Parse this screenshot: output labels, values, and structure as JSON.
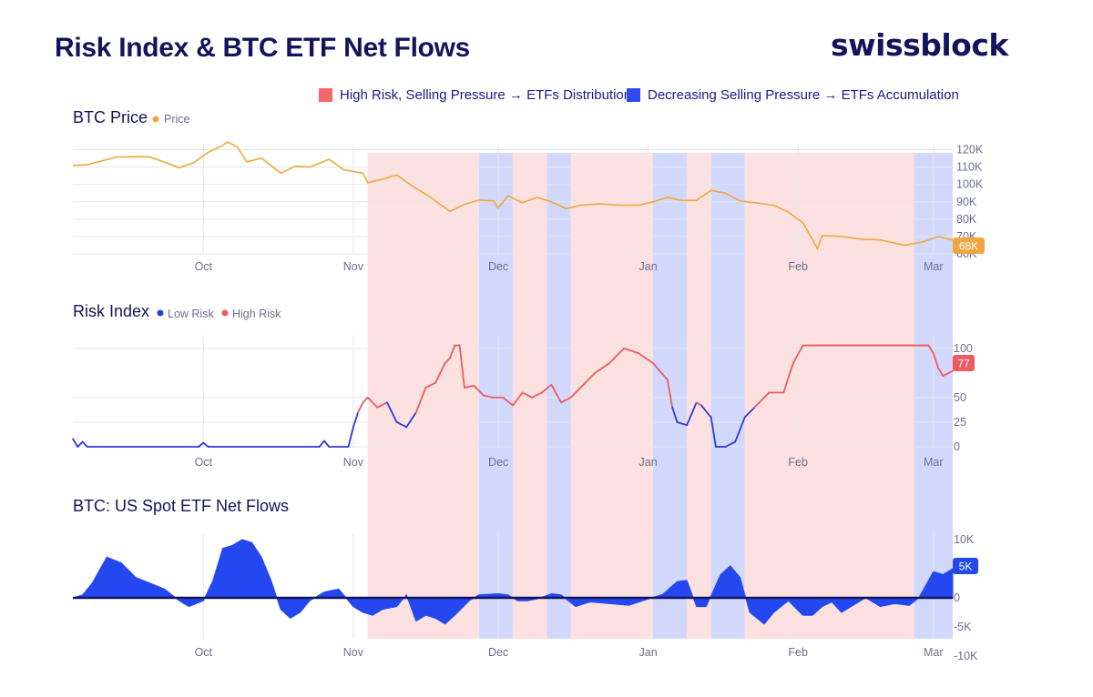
{
  "header": {
    "title": "Risk Index & BTC ETF Net Flows",
    "brand": "swissblock"
  },
  "legend": {
    "high_risk": "High Risk, Selling Pressure → ETFs Distribution",
    "decreasing": "Decreasing Selling Pressure → ETFs Accumulation"
  },
  "colors": {
    "high_band": "#fde1e1",
    "low_band": "#d2d8fb",
    "price": "#f0a640",
    "risk_high": "#ee5a5f",
    "risk_low": "#2f3ad8",
    "flows": "#2448f0",
    "navy": "#13145b",
    "tick": "#6b6f90"
  },
  "chart_data": [
    {
      "type": "line",
      "title": "BTC Price",
      "series": [
        {
          "name": "Price",
          "points": [
            [
              "2025-09-04",
              111000
            ],
            [
              "2025-09-07",
              111300
            ],
            [
              "2025-09-10",
              113500
            ],
            [
              "2025-09-13",
              115800
            ],
            [
              "2025-09-17",
              116000
            ],
            [
              "2025-09-20",
              115800
            ],
            [
              "2025-09-23",
              112800
            ],
            [
              "2025-09-26",
              109600
            ],
            [
              "2025-09-29",
              112500
            ],
            [
              "2025-10-02",
              118500
            ],
            [
              "2025-10-05",
              122500
            ],
            [
              "2025-10-06",
              124500
            ],
            [
              "2025-10-08",
              121500
            ],
            [
              "2025-10-10",
              113000
            ],
            [
              "2025-10-13",
              115200
            ],
            [
              "2025-10-17",
              106500
            ],
            [
              "2025-10-20",
              110500
            ],
            [
              "2025-10-23",
              110000
            ],
            [
              "2025-10-27",
              114500
            ],
            [
              "2025-10-30",
              108500
            ],
            [
              "2025-11-03",
              106500
            ],
            [
              "2025-11-04",
              101000
            ],
            [
              "2025-11-07",
              103000
            ],
            [
              "2025-11-10",
              105500
            ],
            [
              "2025-11-13",
              99500
            ],
            [
              "2025-11-17",
              92500
            ],
            [
              "2025-11-21",
              84500
            ],
            [
              "2025-11-24",
              88500
            ],
            [
              "2025-11-27",
              91000
            ],
            [
              "2025-11-30",
              90500
            ],
            [
              "2025-12-01",
              86500
            ],
            [
              "2025-12-03",
              93500
            ],
            [
              "2025-12-06",
              89500
            ],
            [
              "2025-12-09",
              92500
            ],
            [
              "2025-12-12",
              90000
            ],
            [
              "2025-12-15",
              86000
            ],
            [
              "2025-12-18",
              88000
            ],
            [
              "2025-12-22",
              88800
            ],
            [
              "2025-12-26",
              88000
            ],
            [
              "2025-12-30",
              88000
            ],
            [
              "2026-01-02",
              90000
            ],
            [
              "2026-01-05",
              92500
            ],
            [
              "2026-01-08",
              90800
            ],
            [
              "2026-01-11",
              90800
            ],
            [
              "2026-01-14",
              96500
            ],
            [
              "2026-01-17",
              95000
            ],
            [
              "2026-01-20",
              90500
            ],
            [
              "2026-01-23",
              89500
            ],
            [
              "2026-01-27",
              88000
            ],
            [
              "2026-01-30",
              84000
            ],
            [
              "2026-02-02",
              78000
            ],
            [
              "2026-02-05",
              63000
            ],
            [
              "2026-02-06",
              70500
            ],
            [
              "2026-02-10",
              70000
            ],
            [
              "2026-02-14",
              68500
            ],
            [
              "2026-02-18",
              68000
            ],
            [
              "2026-02-23",
              65000
            ],
            [
              "2026-02-27",
              67000
            ],
            [
              "2026-03-02",
              70000
            ],
            [
              "2026-03-05",
              68000
            ]
          ]
        }
      ],
      "y_ticks": [
        "60K",
        "70K",
        "80K",
        "90K",
        "100K",
        "110K",
        "120K"
      ],
      "ylim": [
        60000,
        125000
      ],
      "current_label": "68K",
      "grid": true
    },
    {
      "type": "line",
      "title": "Risk Index",
      "series": [
        {
          "name": "Low Risk"
        },
        {
          "name": "High Risk"
        }
      ],
      "points": [
        [
          "2025-09-04",
          8
        ],
        [
          "2025-09-05",
          0
        ],
        [
          "2025-09-06",
          5
        ],
        [
          "2025-09-07",
          0
        ],
        [
          "2025-09-08",
          0
        ],
        [
          "2025-09-30",
          0
        ],
        [
          "2025-10-01",
          4
        ],
        [
          "2025-10-02",
          0
        ],
        [
          "2025-10-25",
          0
        ],
        [
          "2025-10-26",
          6
        ],
        [
          "2025-10-27",
          0
        ],
        [
          "2025-10-31",
          0
        ],
        [
          "2025-11-01",
          20
        ],
        [
          "2025-11-02",
          35
        ],
        [
          "2025-11-03",
          45
        ],
        [
          "2025-11-04",
          50
        ],
        [
          "2025-11-06",
          40
        ],
        [
          "2025-11-08",
          45
        ],
        [
          "2025-11-10",
          25
        ],
        [
          "2025-11-12",
          20
        ],
        [
          "2025-11-14",
          35
        ],
        [
          "2025-11-16",
          60
        ],
        [
          "2025-11-18",
          65
        ],
        [
          "2025-11-20",
          85
        ],
        [
          "2025-11-21",
          90
        ],
        [
          "2025-11-22",
          103
        ],
        [
          "2025-11-23",
          103
        ],
        [
          "2025-11-24",
          60
        ],
        [
          "2025-11-26",
          62
        ],
        [
          "2025-11-28",
          52
        ],
        [
          "2025-11-30",
          50
        ],
        [
          "2025-12-02",
          50
        ],
        [
          "2025-12-04",
          42
        ],
        [
          "2025-12-06",
          55
        ],
        [
          "2025-12-08",
          50
        ],
        [
          "2025-12-10",
          55
        ],
        [
          "2025-12-12",
          63
        ],
        [
          "2025-12-14",
          45
        ],
        [
          "2025-12-16",
          50
        ],
        [
          "2025-12-18",
          60
        ],
        [
          "2025-12-21",
          75
        ],
        [
          "2025-12-24",
          85
        ],
        [
          "2025-12-27",
          100
        ],
        [
          "2025-12-30",
          95
        ],
        [
          "2026-01-02",
          85
        ],
        [
          "2026-01-05",
          68
        ],
        [
          "2026-01-06",
          40
        ],
        [
          "2026-01-07",
          25
        ],
        [
          "2026-01-09",
          22
        ],
        [
          "2026-01-11",
          45
        ],
        [
          "2026-01-12",
          42
        ],
        [
          "2026-01-14",
          30
        ],
        [
          "2026-01-15",
          0
        ],
        [
          "2026-01-17",
          0
        ],
        [
          "2026-01-19",
          5
        ],
        [
          "2026-01-21",
          30
        ],
        [
          "2026-01-23",
          40
        ],
        [
          "2026-01-26",
          55
        ],
        [
          "2026-01-29",
          55
        ],
        [
          "2026-01-31",
          85
        ],
        [
          "2026-02-02",
          103
        ],
        [
          "2026-02-04",
          103
        ],
        [
          "2026-02-27",
          103
        ],
        [
          "2026-02-28",
          103
        ],
        [
          "2026-03-01",
          95
        ],
        [
          "2026-03-02",
          80
        ],
        [
          "2026-03-03",
          72
        ],
        [
          "2026-03-05",
          77
        ]
      ],
      "threshold": 40,
      "y_ticks": [
        "0",
        "25",
        "50",
        "100"
      ],
      "ylim": [
        0,
        110
      ],
      "current_label": "77"
    },
    {
      "type": "area",
      "title": "BTC: US Spot ETF Net Flows",
      "points": [
        [
          "2025-09-04",
          0
        ],
        [
          "2025-09-06",
          500
        ],
        [
          "2025-09-08",
          2500
        ],
        [
          "2025-09-11",
          7000
        ],
        [
          "2025-09-14",
          6000
        ],
        [
          "2025-09-17",
          3500
        ],
        [
          "2025-09-20",
          2500
        ],
        [
          "2025-09-23",
          1500
        ],
        [
          "2025-09-26",
          -500
        ],
        [
          "2025-09-28",
          -1500
        ],
        [
          "2025-10-01",
          -500
        ],
        [
          "2025-10-03",
          3000
        ],
        [
          "2025-10-05",
          8500
        ],
        [
          "2025-10-07",
          9000
        ],
        [
          "2025-10-09",
          10000
        ],
        [
          "2025-10-11",
          9500
        ],
        [
          "2025-10-13",
          7000
        ],
        [
          "2025-10-15",
          3000
        ],
        [
          "2025-10-17",
          -2000
        ],
        [
          "2025-10-19",
          -3500
        ],
        [
          "2025-10-21",
          -2500
        ],
        [
          "2025-10-23",
          -500
        ],
        [
          "2025-10-26",
          1000
        ],
        [
          "2025-10-29",
          1500
        ],
        [
          "2025-11-01",
          -1500
        ],
        [
          "2025-11-03",
          -2500
        ],
        [
          "2025-11-05",
          -3000
        ],
        [
          "2025-11-07",
          -2000
        ],
        [
          "2025-11-10",
          -1500
        ],
        [
          "2025-11-12",
          500
        ],
        [
          "2025-11-14",
          -4000
        ],
        [
          "2025-11-16",
          -3000
        ],
        [
          "2025-11-18",
          -3500
        ],
        [
          "2025-11-20",
          -4500
        ],
        [
          "2025-11-22",
          -3000
        ],
        [
          "2025-11-25",
          -500
        ],
        [
          "2025-11-27",
          500
        ],
        [
          "2025-12-01",
          700
        ],
        [
          "2025-12-03",
          500
        ],
        [
          "2025-12-05",
          -500
        ],
        [
          "2025-12-07",
          -500
        ],
        [
          "2025-12-09",
          -200
        ],
        [
          "2025-12-12",
          700
        ],
        [
          "2025-12-14",
          500
        ],
        [
          "2025-12-17",
          -1500
        ],
        [
          "2025-12-20",
          -700
        ],
        [
          "2025-12-24",
          -1000
        ],
        [
          "2025-12-28",
          -1300
        ],
        [
          "2026-01-01",
          -200
        ],
        [
          "2026-01-04",
          600
        ],
        [
          "2026-01-07",
          2800
        ],
        [
          "2026-01-09",
          3000
        ],
        [
          "2026-01-11",
          -1500
        ],
        [
          "2026-01-13",
          -1500
        ],
        [
          "2026-01-16",
          4000
        ],
        [
          "2026-01-18",
          5500
        ],
        [
          "2026-01-20",
          3500
        ],
        [
          "2026-01-22",
          -2500
        ],
        [
          "2026-01-25",
          -4500
        ],
        [
          "2026-01-27",
          -2500
        ],
        [
          "2026-01-30",
          -500
        ],
        [
          "2026-02-02",
          -3000
        ],
        [
          "2026-02-04",
          -3000
        ],
        [
          "2026-02-06",
          -1500
        ],
        [
          "2026-02-08",
          -700
        ],
        [
          "2026-02-10",
          -2500
        ],
        [
          "2026-02-12",
          -1500
        ],
        [
          "2026-02-15",
          0
        ],
        [
          "2026-02-18",
          -1500
        ],
        [
          "2026-02-21",
          -1000
        ],
        [
          "2026-02-24",
          -1300
        ],
        [
          "2026-02-26",
          0
        ],
        [
          "2026-03-01",
          4500
        ],
        [
          "2026-03-03",
          4000
        ],
        [
          "2026-03-05",
          5000
        ]
      ],
      "y_ticks": [
        "10K",
        "5K",
        "0",
        "-5K",
        "-10K"
      ],
      "ylim": [
        -10000,
        10000
      ],
      "current_label": "5K"
    }
  ],
  "x_axis": {
    "ticks": [
      [
        "Oct",
        "2025-10-01"
      ],
      [
        "Nov",
        "2025-11-01"
      ],
      [
        "Dec",
        "2025-12-01"
      ],
      [
        "Jan",
        "2026-01-01"
      ],
      [
        "Feb",
        "2026-02-01"
      ],
      [
        "Mar",
        "2026-03-01"
      ]
    ]
  },
  "bands": [
    [
      "high",
      "2025-11-04",
      "2025-11-27"
    ],
    [
      "low",
      "2025-11-27",
      "2025-12-04"
    ],
    [
      "high",
      "2025-12-04",
      "2025-12-11"
    ],
    [
      "low",
      "2025-12-11",
      "2025-12-16"
    ],
    [
      "high",
      "2025-12-16",
      "2026-01-02"
    ],
    [
      "low",
      "2026-01-02",
      "2026-01-09"
    ],
    [
      "high",
      "2026-01-09",
      "2026-01-14"
    ],
    [
      "low",
      "2026-01-14",
      "2026-01-21"
    ],
    [
      "high",
      "2026-01-21",
      "2026-02-25"
    ],
    [
      "low",
      "2026-02-25",
      "2026-03-05"
    ]
  ]
}
